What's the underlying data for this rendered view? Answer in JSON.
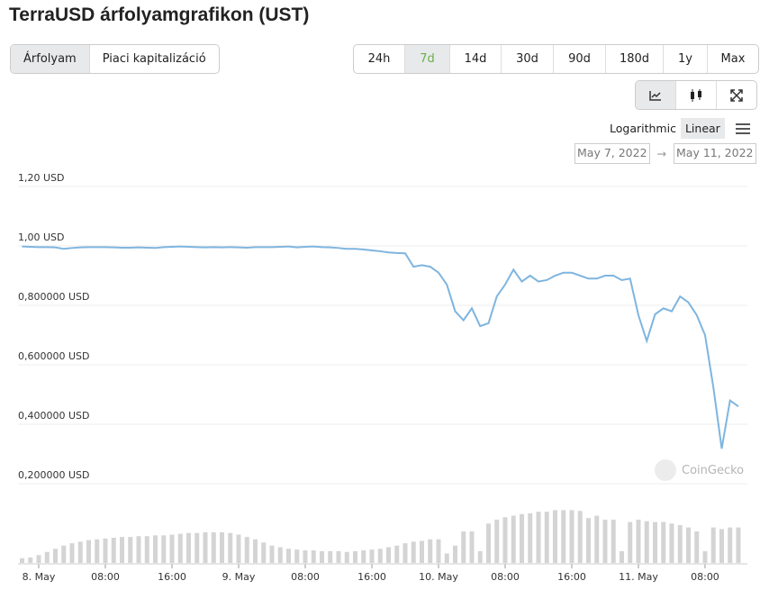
{
  "header": {
    "title": "TerraUSD árfolyamgrafikon (UST)"
  },
  "tabs": [
    "Árfolyam",
    "Piaci kapitalizáció"
  ],
  "periods": [
    "24h",
    "7d",
    "14d",
    "30d",
    "90d",
    "180d",
    "1y",
    "Max"
  ],
  "scale_options": [
    "Logarithmic",
    "Linear"
  ],
  "date_range": {
    "from": "May 7, 2022",
    "separator": "→",
    "to": "May 11, 2022"
  },
  "watermark": "CoinGecko",
  "chart_data": {
    "type": "line",
    "x": [
      -2,
      -1,
      0,
      1,
      2,
      3,
      4,
      5,
      6,
      7,
      8,
      9,
      10,
      11,
      12,
      13,
      14,
      15,
      16,
      17,
      18,
      19,
      20,
      21,
      22,
      23,
      24,
      25,
      26,
      27,
      28,
      29,
      30,
      31,
      32,
      33,
      34,
      35,
      36,
      37,
      38,
      39,
      40,
      41,
      42,
      43,
      44,
      45,
      46,
      47,
      48,
      49,
      50,
      51,
      52,
      53,
      54,
      55,
      56,
      57,
      58,
      59,
      60,
      61,
      62,
      63,
      64,
      65,
      66,
      67,
      68,
      69,
      70,
      71,
      72,
      73,
      74,
      75,
      76,
      77,
      78,
      79,
      80,
      81,
      82,
      83,
      84
    ],
    "xlim": [
      -2,
      84.5
    ],
    "xticks": [
      {
        "value": 0,
        "label": "8. May"
      },
      {
        "value": 8,
        "label": "08:00"
      },
      {
        "value": 16,
        "label": "16:00"
      },
      {
        "value": 24,
        "label": "9. May"
      },
      {
        "value": 32,
        "label": "08:00"
      },
      {
        "value": 40,
        "label": "16:00"
      },
      {
        "value": 48,
        "label": "10. May"
      },
      {
        "value": 56,
        "label": "08:00"
      },
      {
        "value": 64,
        "label": "16:00"
      },
      {
        "value": 72,
        "label": "11. May"
      },
      {
        "value": 80,
        "label": "08:00"
      }
    ],
    "ylim": [
      0.2,
      1.2
    ],
    "yticks": [
      {
        "value": 0.2,
        "label": "0,200000 USD"
      },
      {
        "value": 0.4,
        "label": "0,400000 USD"
      },
      {
        "value": 0.6,
        "label": "0,600000 USD"
      },
      {
        "value": 0.8,
        "label": "0,800000 USD"
      },
      {
        "value": 1.0,
        "label": "1,00 USD"
      },
      {
        "value": 1.2,
        "label": "1,20 USD"
      }
    ],
    "y2lim": [
      0,
      80
    ],
    "grid": true,
    "series": [
      {
        "color": "#7fb5df",
        "values": [
          0.998,
          0.997,
          0.996,
          0.996,
          0.995,
          0.99,
          0.993,
          0.995,
          0.996,
          0.996,
          0.996,
          0.995,
          0.994,
          0.994,
          0.995,
          0.994,
          0.993,
          0.996,
          0.997,
          0.998,
          0.997,
          0.996,
          0.995,
          0.996,
          0.995,
          0.996,
          0.995,
          0.994,
          0.996,
          0.996,
          0.996,
          0.997,
          0.998,
          0.995,
          0.997,
          0.998,
          0.996,
          0.995,
          0.993,
          0.99,
          0.99,
          0.988,
          0.985,
          0.982,
          0.978,
          0.976,
          0.975,
          0.93,
          0.935,
          0.93,
          0.91,
          0.87,
          0.78,
          0.75,
          0.79,
          0.73,
          0.74,
          0.83,
          0.87,
          0.92,
          0.88,
          0.9,
          0.88,
          0.885,
          0.9,
          0.91,
          0.91,
          0.9,
          0.89,
          0.89,
          0.9,
          0.9,
          0.885,
          0.89,
          0.767,
          0.68,
          0.77,
          0.79,
          0.78,
          0.83,
          0.81,
          0.767,
          0.7,
          0.524,
          0.318,
          0.48,
          0.46
        ]
      },
      {
        "type": "bar",
        "axis": "y2",
        "color": "#d4d4d4",
        "values": [
          6,
          7,
          10,
          14,
          18,
          22,
          25,
          27,
          29,
          30,
          31,
          32,
          33,
          33,
          34,
          34,
          35,
          35,
          36,
          37,
          38,
          38,
          39,
          39,
          39,
          38,
          36,
          33,
          30,
          26,
          22,
          20,
          18,
          17,
          16,
          16,
          15,
          15,
          15,
          14,
          15,
          16,
          17,
          18,
          20,
          22,
          25,
          27,
          28,
          30,
          30,
          12,
          22,
          40,
          40,
          15,
          50,
          55,
          58,
          60,
          62,
          63,
          65,
          65,
          67,
          67,
          67,
          66,
          57,
          60,
          55,
          55,
          15,
          52,
          55,
          53,
          52,
          52,
          50,
          48,
          45,
          40,
          15,
          45,
          43,
          45,
          45
        ]
      }
    ]
  }
}
